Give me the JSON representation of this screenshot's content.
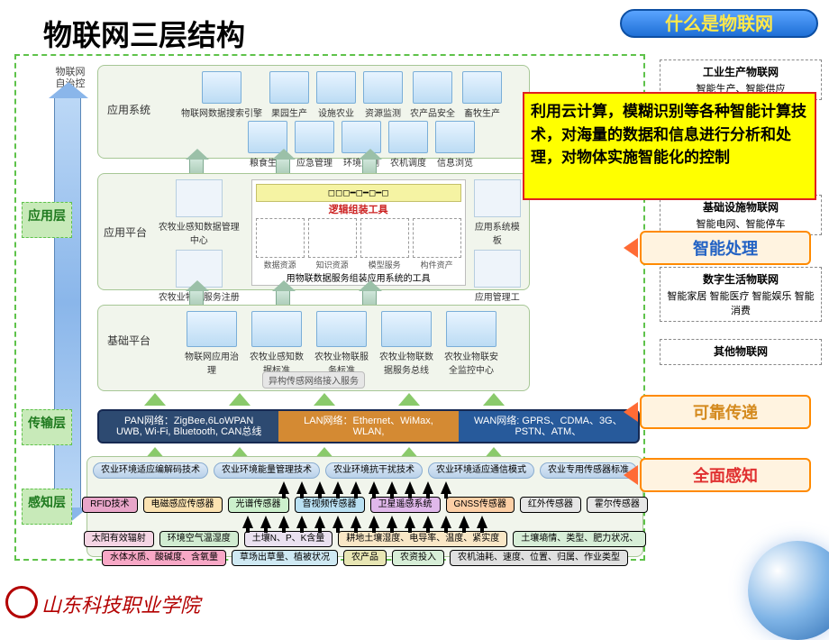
{
  "title": "物联网三层结构",
  "headerTab": "什么是物联网",
  "vertLabel": "物联网自治控制",
  "layers": {
    "app": "应用层",
    "trans": "传输层",
    "sense": "感知层"
  },
  "sections": {
    "appSys": "应用系统",
    "appPlat": "应用平台",
    "basePlat": "基础平台"
  },
  "appSysRow1": [
    "物联网数据搜索引擎",
    "果园生产",
    "设施农业",
    "资源监测",
    "农产品安全",
    "畜牧生产"
  ],
  "appSysRow2": [
    "粮食生产",
    "应急管理",
    "环境监测",
    "农机调度",
    "信息浏览"
  ],
  "appPlat": {
    "left1": "农牧业感知数据管理中心",
    "left2": "农牧业物联服务注册中心",
    "rightTop": "应用系统模板",
    "rightBottom": "应用管理工具",
    "toolText": "逻辑组装工具",
    "toolCaption": "用物联数据服务组装应用系统的工具",
    "toolCats": [
      "数据资源",
      "知识资源",
      "模型服务",
      "构件资产"
    ]
  },
  "basePlat": {
    "items": [
      "物联网应用治理",
      "农牧业感知数据标准",
      "农牧业物联服务标准",
      "农牧业物联数据服务总线",
      "农牧业物联安全监控中心"
    ],
    "bottom": "异构传感网络接入服务"
  },
  "netBar": {
    "pan": {
      "h": "PAN网络：ZigBee,6LoWPAN",
      "s": "UWB, Wi-Fi, Bluetooth, CAN总线"
    },
    "lan": {
      "h": "LAN网络：Ethernet、WiMax,",
      "s": "WLAN,"
    },
    "wan": {
      "h": "WAN网络: GPRS、CDMA、3G、",
      "s": "PSTN、ATM、"
    },
    "colors": {
      "pan": "#2d4a71",
      "lan": "#d48a33",
      "wan": "#275a9b",
      "border": "#14274a"
    }
  },
  "sensing": {
    "greenRow": [
      "农业环境适应编解码技术",
      "农业环境能量管理技术",
      "农业环境抗干扰技术",
      "农业环境适应通信模式",
      "农业专用传感器标准"
    ],
    "sensorRow": {
      "labels": [
        "RFID技术",
        "电磁感应传感器",
        "光谱传感器",
        "音视频传感器",
        "卫星遥感系统",
        "GNSS传感器",
        "红外传感器",
        "霍尔传感器"
      ],
      "colors": [
        "#e8a6c9",
        "#fbe2b1",
        "#ccf0cc",
        "#b9e0f2",
        "#e0b8ea",
        "#fccfa6",
        "#e6e6e6",
        "#e6e6e6"
      ]
    },
    "envRow1": {
      "labels": [
        "太阳有效辐射",
        "环境空气温湿度",
        "土壤N、P、K含量",
        "耕地土壤湿度、电导率、温度、紧实度",
        "土壤墒情、类型、肥力状况、"
      ],
      "colors": [
        "#f5d5e4",
        "#d1ecd1",
        "#eae1f0",
        "#f9e7c6",
        "#d7eed7"
      ]
    },
    "envRow2": {
      "labels": [
        "水体水质、酸碱度、含氧量",
        "草场出草量、植被状况",
        "农产品",
        "农资投入",
        "农机油耗、速度、位置、归属、作业类型"
      ],
      "colors": [
        "#f8a8c6",
        "#cfe9f3",
        "#e8e6b4",
        "#d7eed7",
        "#e0e0e0"
      ]
    }
  },
  "sidePanels": [
    {
      "t": "工业生产物联网",
      "s": "智能生产、智能供应"
    },
    {
      "t": "基础设施物联网",
      "s": "智能电网、智能停车"
    },
    {
      "t": "数字生活物联网",
      "s": "智能家居 智能医疗 智能娱乐 智能消费"
    },
    {
      "t": "其他物联网",
      "s": ""
    }
  ],
  "ribbons": {
    "r1": {
      "text": "智能处理",
      "color": "#2262c4",
      "bg": "#fff3e0",
      "border": "#ff8a00"
    },
    "r2": {
      "text": "可靠传递",
      "color": "#d48a1e",
      "bg": "#fff3e0",
      "border": "#ff8a00"
    },
    "r3": {
      "text": "全面感知",
      "color": "#e03030",
      "bg": "#fff3e0",
      "border": "#ff8a00"
    }
  },
  "yellowBox": "利用云计算，模糊识别等各种智能计算技术，对海量的数据和信息进行分析和处理，对物体实施智能化的控制",
  "footer": "山东科技职业学院"
}
